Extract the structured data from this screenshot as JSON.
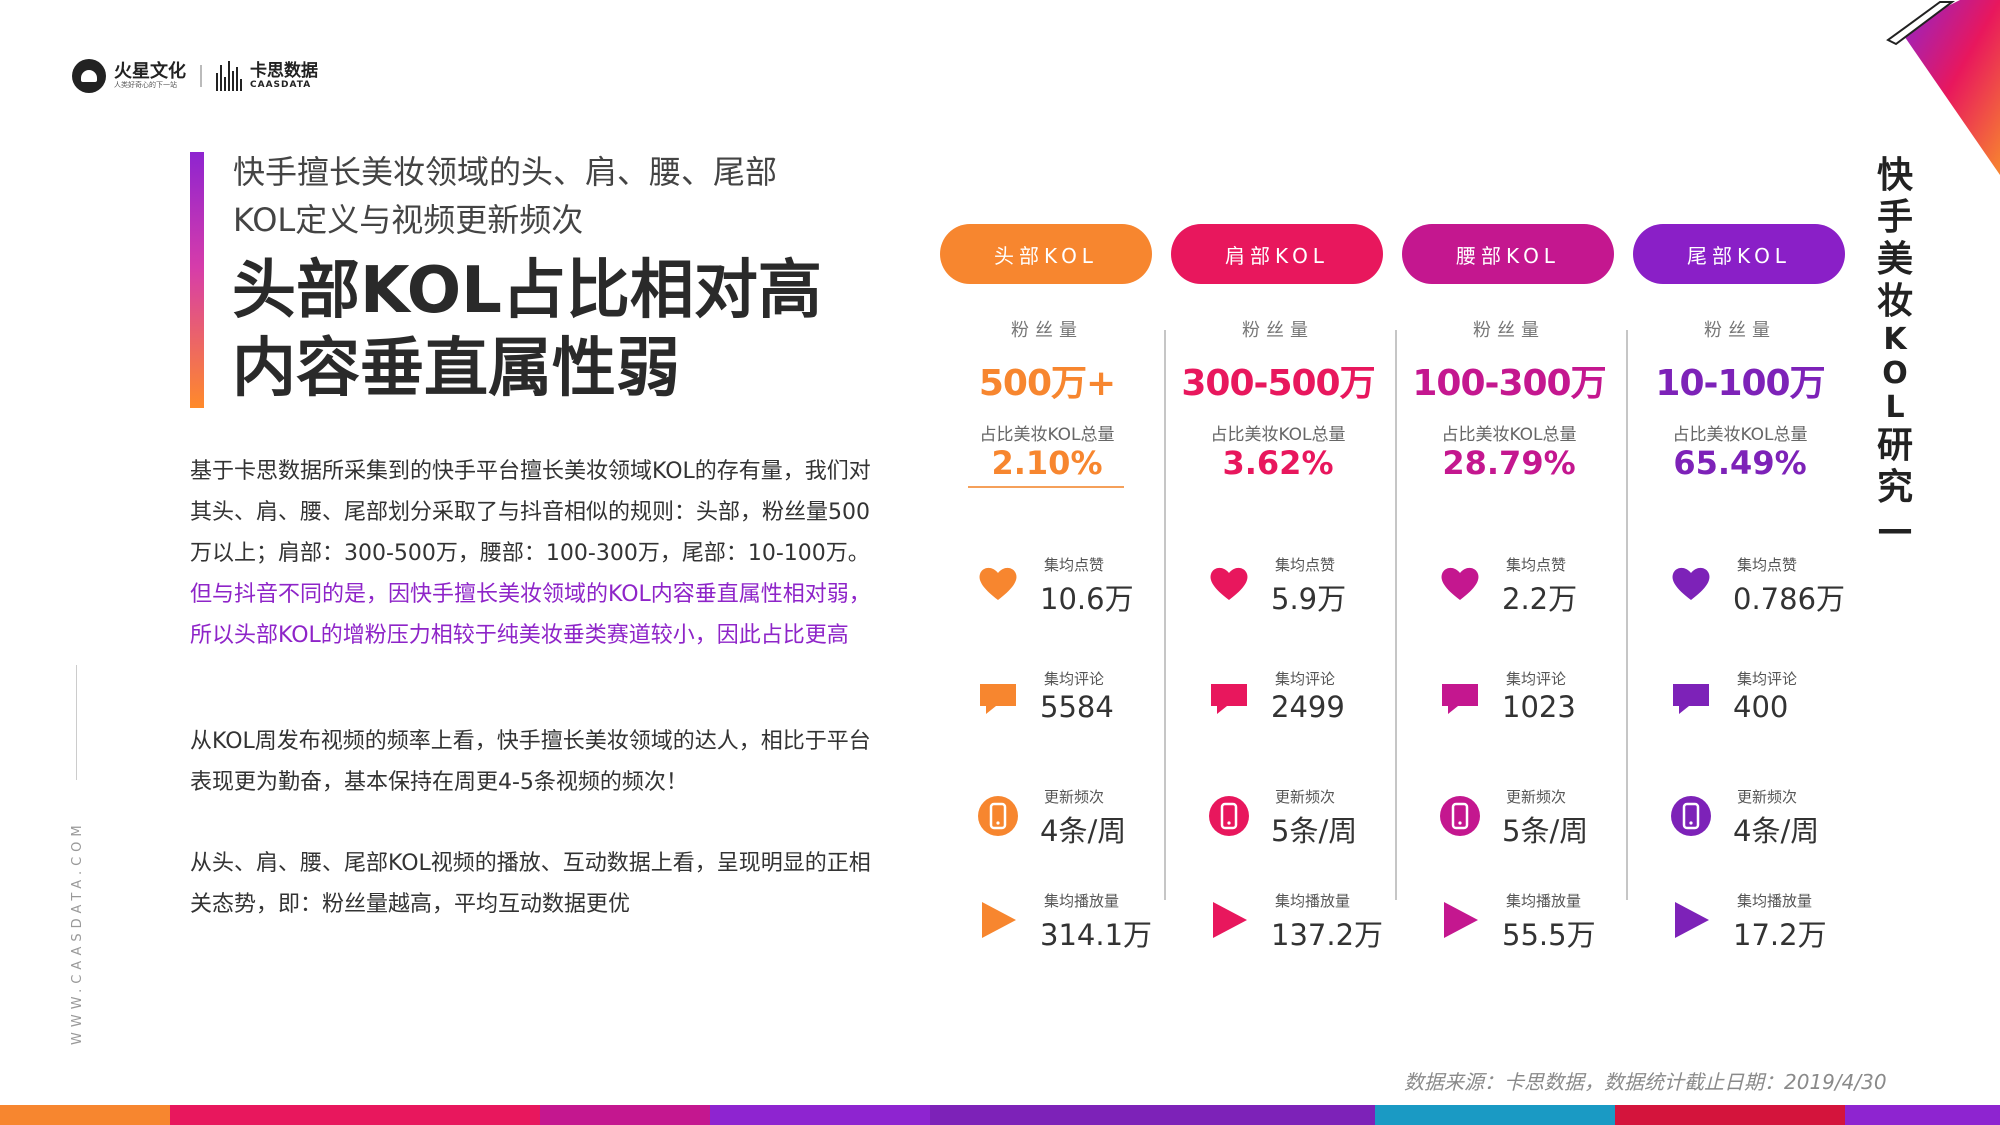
{
  "header": {
    "brand1_name": "火星文化",
    "brand1_tagline": "人类好奇心的下一站",
    "brand2_name": "卡思数据",
    "brand2_sub": "CAASDATA"
  },
  "title": {
    "subtitle_line1": "快手擅长美妆领域的头、肩、腰、尾部",
    "subtitle_line2": "KOL定义与视频更新频次",
    "headline_line1": "头部KOL占比相对高",
    "headline_line2": "内容垂直属性弱"
  },
  "body": {
    "p1_normal": "基于卡思数据所采集到的快手平台擅长美妆领域KOL的存有量，我们对其头、肩、腰、尾部划分采取了与抖音相似的规则：头部，粉丝量500万以上；肩部：300-500万，腰部：100-300万，尾部：10-100万。",
    "p1_highlight": "但与抖音不同的是，因快手擅长美妆领域的KOL内容垂直属性相对弱，所以头部KOL的增粉压力相较于纯美妆垂类赛道较小，因此占比更高",
    "p2": "从KOL周发布视频的频率上看，快手擅长美妆领域的达人，相比于平台表现更为勤奋，基本保持在周更4-5条视频的频次！",
    "p3": "从头、肩、腰、尾部KOL视频的播放、互动数据上看，呈现明显的正相关态势，即：粉丝量越高，平均互动数据更优"
  },
  "side_url": "WWW.CAASDATA.COM",
  "vertical_title": [
    "快",
    "手",
    "美",
    "妆",
    "K",
    "O",
    "L",
    "研",
    "究",
    "—"
  ],
  "metric_labels": {
    "fans": "粉丝量",
    "share": "占比美妆KOL总量",
    "likes": "集均点赞",
    "comments": "集均评论",
    "frequency": "更新频次",
    "plays": "集均播放量"
  },
  "columns": [
    {
      "tier": "头部KOL",
      "color": "#f7862f",
      "fans": "500万+",
      "share": "2.10%",
      "likes": "10.6万",
      "comments": "5584",
      "frequency": "4条/周",
      "plays": "314.1万"
    },
    {
      "tier": "肩部KOL",
      "color": "#e8175d",
      "fans": "300-500万",
      "share": "3.62%",
      "likes": "5.9万",
      "comments": "2499",
      "frequency": "5条/周",
      "plays": "137.2万"
    },
    {
      "tier": "腰部KOL",
      "color": "#c4178f",
      "fans": "100-300万",
      "share": "28.79%",
      "likes": "2.2万",
      "comments": "1023",
      "frequency": "5条/周",
      "plays": "55.5万"
    },
    {
      "tier": "尾部KOL",
      "color": "#7d22b8",
      "fans": "10-100万",
      "share": "65.49%",
      "likes": "0.786万",
      "comments": "400",
      "frequency": "4条/周",
      "plays": "17.2万"
    }
  ],
  "pill_colors": [
    "#f7862f",
    "#e8175d",
    "#c4178f",
    "#8a1fc7"
  ],
  "source": "数据来源：卡思数据，数据统计截止日期：2019/4/30"
}
